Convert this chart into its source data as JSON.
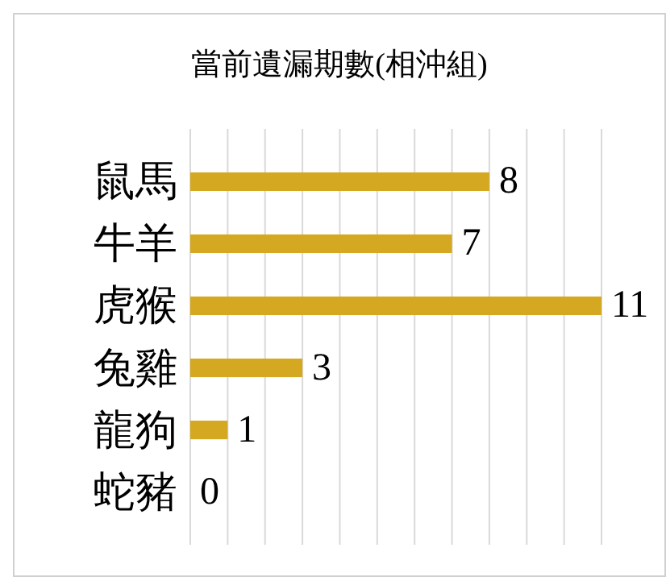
{
  "chart_data": {
    "type": "bar",
    "orientation": "horizontal",
    "title": "當前遺漏期數(相沖組)",
    "categories": [
      "鼠馬",
      "牛羊",
      "虎猴",
      "兔雞",
      "龍狗",
      "蛇豬"
    ],
    "values": [
      8,
      7,
      11,
      3,
      1,
      0
    ],
    "color": "#d4a820",
    "xlim": [
      0,
      11
    ],
    "xticks": [
      {
        "value": 0,
        "label": null
      },
      {
        "value": 1,
        "label": null
      },
      {
        "value": 2,
        "label": null
      },
      {
        "value": 3,
        "label": null
      },
      {
        "value": 4,
        "label": null
      },
      {
        "value": 5,
        "label": null
      },
      {
        "value": 6,
        "label": null
      },
      {
        "value": 7,
        "label": null
      },
      {
        "value": 8,
        "label": null
      },
      {
        "value": 9,
        "label": null
      },
      {
        "value": 10,
        "label": null
      },
      {
        "value": 11,
        "label": null
      }
    ],
    "tick_labels": "y",
    "grid": "x",
    "data_labels": true
  }
}
